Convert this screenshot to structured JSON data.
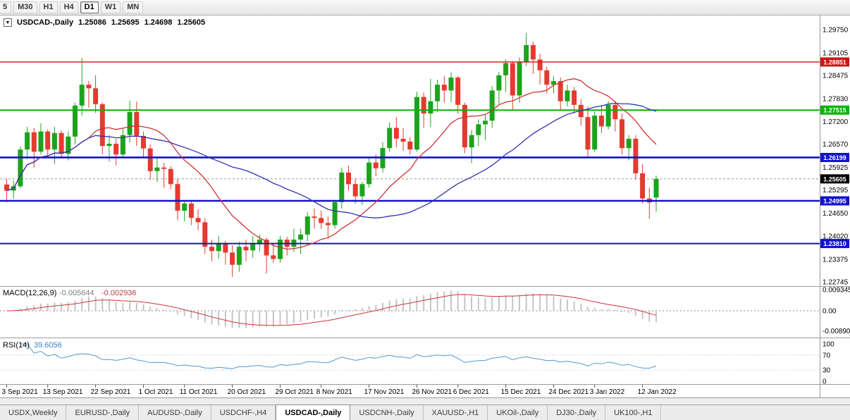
{
  "toolbar": {
    "timeframes": [
      {
        "label": "5",
        "active": false
      },
      {
        "label": "M30",
        "active": false
      },
      {
        "label": "H1",
        "active": false
      },
      {
        "label": "H4",
        "active": false
      },
      {
        "label": "D1",
        "active": true
      },
      {
        "label": "W1",
        "active": false
      },
      {
        "label": "MN",
        "active": false
      }
    ]
  },
  "chart_title": {
    "symbol_period": "USDCAD-,Daily",
    "open": "1.25086",
    "high": "1.25695",
    "low": "1.24698",
    "close": "1.25605",
    "collapse_glyph": "▼"
  },
  "chart_data": {
    "type": "candlestick",
    "symbol": "USDCAD-",
    "timeframe": "Daily",
    "last_ohlc": {
      "open": 1.25086,
      "high": 1.25695,
      "low": 1.24698,
      "close": 1.25605
    },
    "y_axis": {
      "max": 1.2975,
      "min": 1.22745,
      "ticks": [
        "1.29750",
        "1.29105",
        "1.28475",
        "1.27830",
        "1.27200",
        "1.26570",
        "1.25925",
        "1.25295",
        "1.24650",
        "1.24020",
        "1.23375",
        "1.22745"
      ]
    },
    "x_labels": [
      {
        "i": 0,
        "t": "3 Sep 2021"
      },
      {
        "i": 6,
        "t": "13 Sep 2021"
      },
      {
        "i": 13,
        "t": "22 Sep 2021"
      },
      {
        "i": 20,
        "t": "1 Oct 2021"
      },
      {
        "i": 26,
        "t": "11 Oct 2021"
      },
      {
        "i": 33,
        "t": "20 Oct 2021"
      },
      {
        "i": 40,
        "t": "29 Oct 2021"
      },
      {
        "i": 46,
        "t": "8 Nov 2021"
      },
      {
        "i": 53,
        "t": "17 Nov 2021"
      },
      {
        "i": 60,
        "t": "26 Nov 2021"
      },
      {
        "i": 66,
        "t": "6 Dec 2021"
      },
      {
        "i": 73,
        "t": "15 Dec 2021"
      },
      {
        "i": 80,
        "t": "24 Dec 2021"
      },
      {
        "i": 86,
        "t": "3 Jan 2022"
      },
      {
        "i": 93,
        "t": "12 Jan 2022"
      }
    ],
    "candles": [
      [
        1.2545,
        1.256,
        1.2495,
        1.2528
      ],
      [
        1.2528,
        1.2555,
        1.2505,
        1.254
      ],
      [
        1.254,
        1.265,
        1.2535,
        1.2642
      ],
      [
        1.2642,
        1.2705,
        1.2615,
        1.269
      ],
      [
        1.269,
        1.2702,
        1.2592,
        1.2636
      ],
      [
        1.2636,
        1.2715,
        1.2628,
        1.2692
      ],
      [
        1.2692,
        1.2698,
        1.262,
        1.2642
      ],
      [
        1.2642,
        1.2705,
        1.2602,
        1.2688
      ],
      [
        1.2688,
        1.2695,
        1.2618,
        1.263
      ],
      [
        1.263,
        1.2692,
        1.2612,
        1.2678
      ],
      [
        1.2678,
        1.2772,
        1.2656,
        1.2764
      ],
      [
        1.2764,
        1.2896,
        1.2736,
        1.2822
      ],
      [
        1.2822,
        1.2832,
        1.2758,
        1.2812
      ],
      [
        1.2812,
        1.2848,
        1.2744,
        1.2768
      ],
      [
        1.2768,
        1.2772,
        1.2628,
        1.2652
      ],
      [
        1.2652,
        1.2682,
        1.2608,
        1.2658
      ],
      [
        1.2658,
        1.2672,
        1.2598,
        1.2628
      ],
      [
        1.2628,
        1.2702,
        1.2618,
        1.2682
      ],
      [
        1.2682,
        1.2778,
        1.2662,
        1.2746
      ],
      [
        1.2746,
        1.2775,
        1.2652,
        1.268
      ],
      [
        1.268,
        1.2692,
        1.2618,
        1.2645
      ],
      [
        1.2645,
        1.2656,
        1.2558,
        1.2582
      ],
      [
        1.2582,
        1.2622,
        1.2552,
        1.2592
      ],
      [
        1.2592,
        1.2605,
        1.2536,
        1.2588
      ],
      [
        1.2588,
        1.2596,
        1.2532,
        1.2546
      ],
      [
        1.2546,
        1.2562,
        1.2446,
        1.2472
      ],
      [
        1.2472,
        1.2502,
        1.2442,
        1.2492
      ],
      [
        1.2492,
        1.2502,
        1.2432,
        1.2452
      ],
      [
        1.2452,
        1.2476,
        1.2418,
        1.244
      ],
      [
        1.244,
        1.2452,
        1.2352,
        1.2372
      ],
      [
        1.2372,
        1.2392,
        1.2332,
        1.236
      ],
      [
        1.236,
        1.2402,
        1.2338,
        1.2382
      ],
      [
        1.2382,
        1.2388,
        1.2322,
        1.2356
      ],
      [
        1.2356,
        1.2376,
        1.2288,
        1.2322
      ],
      [
        1.2322,
        1.2386,
        1.2302,
        1.2372
      ],
      [
        1.2372,
        1.2392,
        1.2332,
        1.2362
      ],
      [
        1.2362,
        1.2402,
        1.2342,
        1.2382
      ],
      [
        1.2382,
        1.2406,
        1.2358,
        1.2392
      ],
      [
        1.2392,
        1.2398,
        1.2298,
        1.2348
      ],
      [
        1.2348,
        1.2382,
        1.2328,
        1.2338
      ],
      [
        1.2338,
        1.2402,
        1.2328,
        1.2392
      ],
      [
        1.2392,
        1.24,
        1.2348,
        1.2372
      ],
      [
        1.2372,
        1.2422,
        1.2358,
        1.2392
      ],
      [
        1.2392,
        1.2422,
        1.2352,
        1.2406
      ],
      [
        1.2406,
        1.2468,
        1.2388,
        1.2456
      ],
      [
        1.2456,
        1.2478,
        1.2422,
        1.2452
      ],
      [
        1.2452,
        1.2472,
        1.2422,
        1.2438
      ],
      [
        1.2438,
        1.2456,
        1.2398,
        1.2432
      ],
      [
        1.2432,
        1.2502,
        1.2422,
        1.2496
      ],
      [
        1.2496,
        1.2592,
        1.2478,
        1.2578
      ],
      [
        1.2578,
        1.2598,
        1.2528,
        1.2546
      ],
      [
        1.2546,
        1.2562,
        1.2492,
        1.2512
      ],
      [
        1.2512,
        1.2552,
        1.2488,
        1.2546
      ],
      [
        1.2546,
        1.2618,
        1.2536,
        1.2606
      ],
      [
        1.2606,
        1.2628,
        1.2568,
        1.259
      ],
      [
        1.259,
        1.2662,
        1.2578,
        1.2646
      ],
      [
        1.2646,
        1.2718,
        1.2636,
        1.2702
      ],
      [
        1.2702,
        1.2732,
        1.2648,
        1.2672
      ],
      [
        1.2672,
        1.2702,
        1.2638,
        1.2664
      ],
      [
        1.2664,
        1.2676,
        1.2628,
        1.2642
      ],
      [
        1.2642,
        1.2802,
        1.2636,
        1.2788
      ],
      [
        1.2788,
        1.28,
        1.2702,
        1.2742
      ],
      [
        1.2742,
        1.2838,
        1.2704,
        1.2776
      ],
      [
        1.2776,
        1.2836,
        1.2746,
        1.2822
      ],
      [
        1.2822,
        1.2846,
        1.2772,
        1.2806
      ],
      [
        1.2806,
        1.2856,
        1.2774,
        1.2842
      ],
      [
        1.2842,
        1.2846,
        1.2742,
        1.2766
      ],
      [
        1.2766,
        1.2772,
        1.2632,
        1.2648
      ],
      [
        1.2648,
        1.2696,
        1.2604,
        1.2682
      ],
      [
        1.2682,
        1.2726,
        1.2652,
        1.2712
      ],
      [
        1.2712,
        1.2738,
        1.2668,
        1.2722
      ],
      [
        1.2722,
        1.2818,
        1.2702,
        1.2806
      ],
      [
        1.2806,
        1.2858,
        1.2768,
        1.2848
      ],
      [
        1.2848,
        1.2892,
        1.2802,
        1.2882
      ],
      [
        1.2882,
        1.2888,
        1.2752,
        1.2792
      ],
      [
        1.2792,
        1.2898,
        1.2772,
        1.2886
      ],
      [
        1.2886,
        1.2966,
        1.2874,
        1.2932
      ],
      [
        1.2932,
        1.2942,
        1.2852,
        1.2892
      ],
      [
        1.2892,
        1.2908,
        1.2822,
        1.2862
      ],
      [
        1.2862,
        1.2872,
        1.2798,
        1.2822
      ],
      [
        1.2822,
        1.2846,
        1.2798,
        1.2832
      ],
      [
        1.2832,
        1.2842,
        1.2752,
        1.2776
      ],
      [
        1.2776,
        1.2822,
        1.2762,
        1.2806
      ],
      [
        1.2806,
        1.2816,
        1.2742,
        1.2766
      ],
      [
        1.2766,
        1.2782,
        1.2708,
        1.2732
      ],
      [
        1.2732,
        1.2762,
        1.2622,
        1.2642
      ],
      [
        1.2642,
        1.2748,
        1.2636,
        1.2736
      ],
      [
        1.2736,
        1.2766,
        1.2688,
        1.2706
      ],
      [
        1.2706,
        1.2776,
        1.2698,
        1.2766
      ],
      [
        1.2766,
        1.2776,
        1.2692,
        1.2726
      ],
      [
        1.2726,
        1.2742,
        1.2628,
        1.2646
      ],
      [
        1.2646,
        1.2682,
        1.2612,
        1.2672
      ],
      [
        1.2672,
        1.2682,
        1.2558,
        1.2576
      ],
      [
        1.2576,
        1.2602,
        1.2492,
        1.2506
      ],
      [
        1.2506,
        1.2536,
        1.245,
        1.2495
      ],
      [
        1.25086,
        1.25695,
        1.24698,
        1.25605
      ]
    ],
    "overlays": [
      {
        "type": "sma",
        "period": 13,
        "color": "#cc3333"
      },
      {
        "type": "sma",
        "period": 34,
        "color": "#3232b0"
      }
    ],
    "hlines": [
      {
        "value": 1.28851,
        "label": "1.28851",
        "color": "#cc1414",
        "width": 1.4
      },
      {
        "value": 1.27515,
        "label": "1.27515",
        "color": "#00b400",
        "width": 2
      },
      {
        "value": 1.26199,
        "label": "1.26199",
        "color": "#1212cc",
        "width": 2.6
      },
      {
        "value": 1.24995,
        "label": "1.24995",
        "color": "#1212cc",
        "width": 2.6
      },
      {
        "value": 1.2381,
        "label": "1.23810",
        "color": "#1212cc",
        "width": 2
      }
    ],
    "current_price": {
      "value": 1.25605,
      "label": "1.25605",
      "color": "#000000"
    },
    "colors": {
      "up": "#1ca31c",
      "down": "#e33b2e",
      "macd_hist": "#c0c0c0",
      "macd_signal": "#cc3434",
      "rsi_line": "#4f9bd8"
    }
  },
  "macd": {
    "label": "MACD(12,26,9)",
    "value_main": "-0.005644",
    "value_signal": "-0.002936",
    "fast": 12,
    "slow": 26,
    "signal": 9,
    "axis_max": 0.009345,
    "axis_min": -0.008905,
    "axis_ticks": [
      "0.009345",
      "0.00",
      "-0.008905"
    ]
  },
  "rsi": {
    "label": "RSI(14)",
    "value": "39.6056",
    "period": 14,
    "levels": [
      70,
      30
    ],
    "axis_ticks": [
      "100",
      "70",
      "30",
      "0"
    ]
  },
  "tabs": [
    {
      "label": "USDX,Weekly",
      "active": false
    },
    {
      "label": "EURUSD-,Daily",
      "active": false
    },
    {
      "label": "AUDUSD-,Daily",
      "active": false
    },
    {
      "label": "USDCHF-,H4",
      "active": false
    },
    {
      "label": "USDCAD-,Daily",
      "active": true
    },
    {
      "label": "USDCNH-,Daily",
      "active": false
    },
    {
      "label": "XAUUSD-,H1",
      "active": false
    },
    {
      "label": "UKOil-,Daily",
      "active": false
    },
    {
      "label": "DJ30-,Daily",
      "active": false
    },
    {
      "label": "UK100-,H1",
      "active": false
    }
  ]
}
